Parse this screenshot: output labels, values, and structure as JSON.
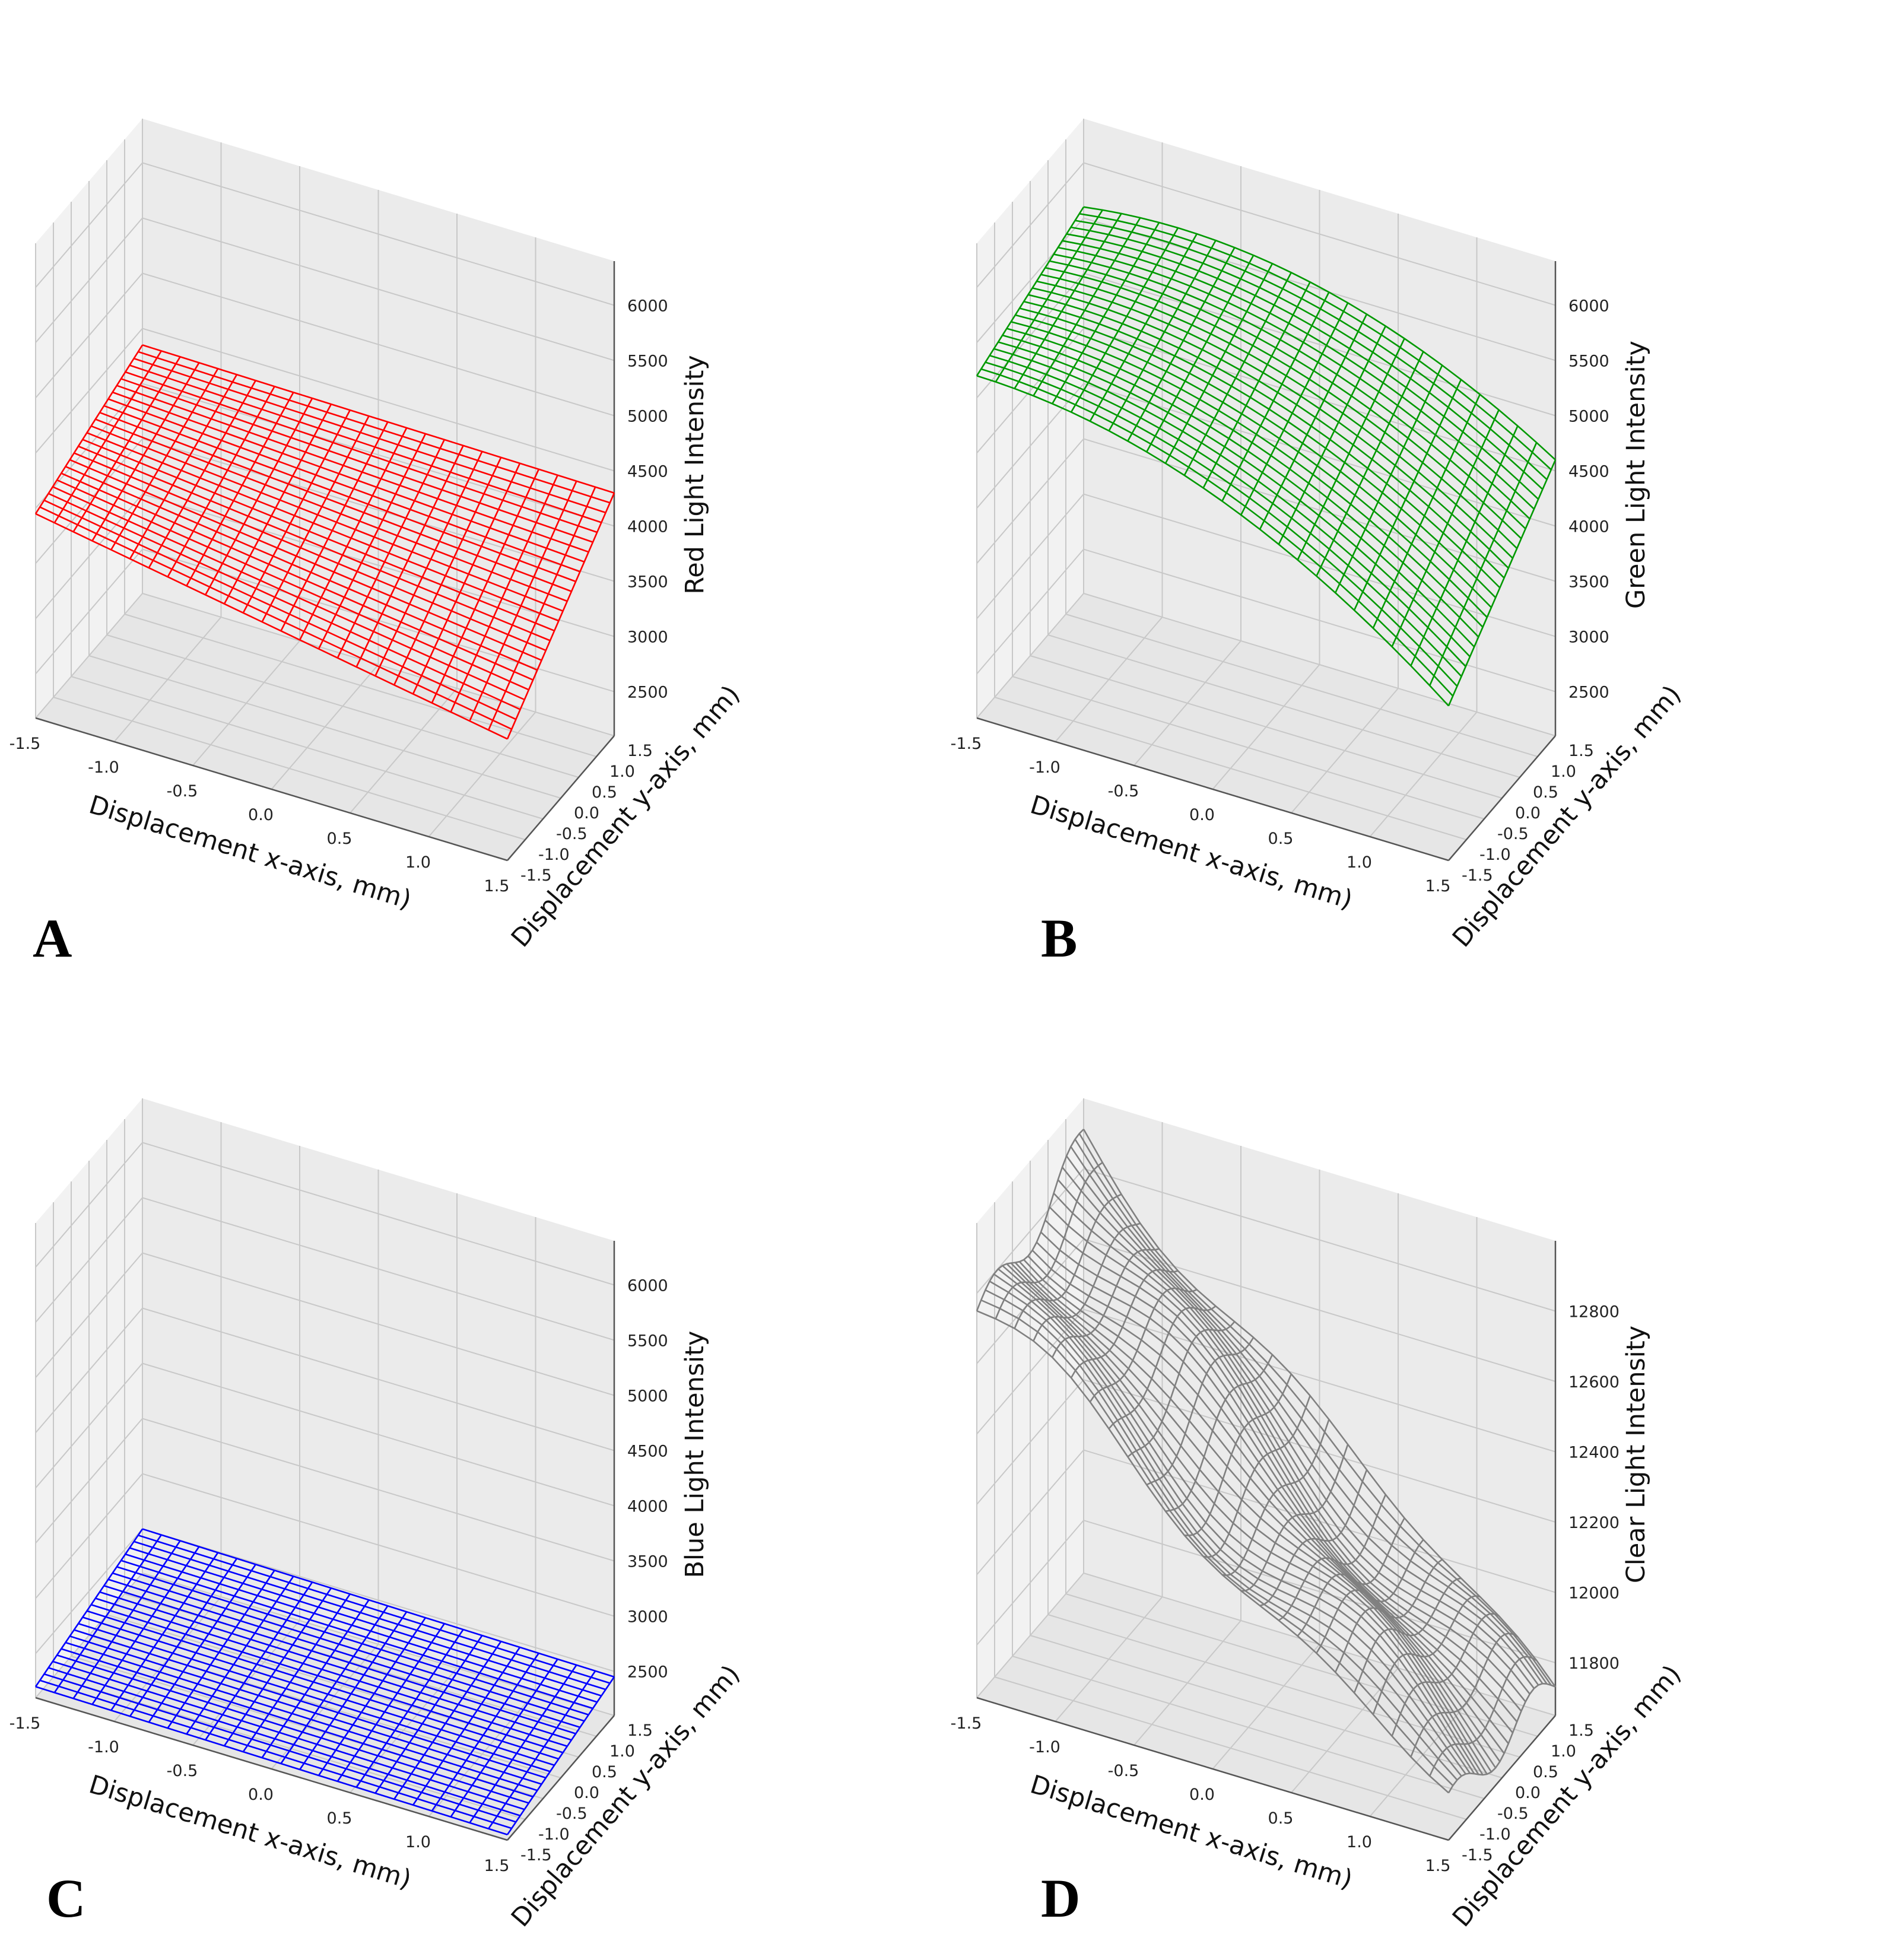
{
  "figure": {
    "panels": [
      {
        "letter": "A",
        "zlabel": "Red Light Intensity"
      },
      {
        "letter": "B",
        "zlabel": "Green Light Intensity"
      },
      {
        "letter": "C",
        "zlabel": "Blue Light Intensity"
      },
      {
        "letter": "D",
        "zlabel": "Clear Light Intensity"
      }
    ]
  },
  "chart_data": [
    {
      "type": "surface",
      "panel": "A",
      "title": "",
      "xlabel": "Displacement x-axis, mm)",
      "ylabel": "Displacement y-axis, mm)",
      "zlabel": "Red Light Intensity",
      "x_ticks": [
        "-1.5",
        "-1.0",
        "-0.5",
        "0.0",
        "0.5",
        "1.0",
        "1.5"
      ],
      "y_ticks": [
        "-1.5",
        "-1.0",
        "-0.5",
        "0.0",
        "0.5",
        "1.0",
        "1.5"
      ],
      "z_ticks": [
        "2500",
        "3000",
        "3500",
        "4000",
        "4500",
        "5000",
        "5500",
        "6000"
      ],
      "xlim": [
        -1.5,
        1.5
      ],
      "ylim": [
        -1.5,
        1.5
      ],
      "zlim": [
        2100,
        6400
      ],
      "color": "#ff0000",
      "grid": true,
      "surface_corners": {
        "x_min_y_min": 3950,
        "x_max_y_min": 3200,
        "x_min_y_max": 4350,
        "x_max_y_max": 4300
      }
    },
    {
      "type": "surface",
      "panel": "B",
      "title": "",
      "xlabel": "Displacement x-axis, mm)",
      "ylabel": "Displacement y-axis, mm)",
      "zlabel": "Green Light Intensity",
      "x_ticks": [
        "-1.5",
        "-1.0",
        "-0.5",
        "0.0",
        "0.5",
        "1.0",
        "1.5"
      ],
      "y_ticks": [
        "-1.5",
        "-1.0",
        "-0.5",
        "0.0",
        "0.5",
        "1.0",
        "1.5"
      ],
      "z_ticks": [
        "2500",
        "3000",
        "3500",
        "4000",
        "4500",
        "5000",
        "5500",
        "6000"
      ],
      "xlim": [
        -1.5,
        1.5
      ],
      "ylim": [
        -1.5,
        1.5
      ],
      "zlim": [
        2100,
        6400
      ],
      "color": "#009900",
      "grid": true,
      "surface_corners": {
        "x_min_y_min": 5200,
        "x_max_y_min": 3500,
        "x_min_y_max": 5600,
        "x_max_y_max": 4600
      },
      "curvature": 600
    },
    {
      "type": "surface",
      "panel": "C",
      "title": "",
      "xlabel": "Displacement x-axis, mm)",
      "ylabel": "Displacement y-axis, mm)",
      "zlabel": "Blue Light Intensity",
      "x_ticks": [
        "-1.5",
        "-1.0",
        "-0.5",
        "0.0",
        "0.5",
        "1.0",
        "1.5"
      ],
      "y_ticks": [
        "-1.5",
        "-1.0",
        "-0.5",
        "0.0",
        "0.5",
        "1.0",
        "1.5"
      ],
      "z_ticks": [
        "2500",
        "3000",
        "3500",
        "4000",
        "4500",
        "5000",
        "5500",
        "6000"
      ],
      "xlim": [
        -1.5,
        1.5
      ],
      "ylim": [
        -1.5,
        1.5
      ],
      "zlim": [
        2100,
        6400
      ],
      "color": "#0000ff",
      "grid": true,
      "surface_corners": {
        "x_min_y_min": 2200,
        "x_max_y_min": 2150,
        "x_min_y_max": 2500,
        "x_max_y_max": 2450
      }
    },
    {
      "type": "surface",
      "panel": "D",
      "title": "",
      "xlabel": "Displacement x-axis, mm)",
      "ylabel": "Displacement y-axis, mm)",
      "zlabel": "Clear Light Intensity",
      "x_ticks": [
        "-1.5",
        "-1.0",
        "-0.5",
        "0.0",
        "0.5",
        "1.0",
        "1.5"
      ],
      "y_ticks": [
        "-1.5",
        "-1.0",
        "-0.5",
        "0.0",
        "0.5",
        "1.0",
        "1.5"
      ],
      "z_ticks": [
        "11800",
        "12000",
        "12200",
        "12400",
        "12600",
        "12800"
      ],
      "xlim": [
        -1.5,
        1.5
      ],
      "ylim": [
        -1.5,
        1.5
      ],
      "zlim": [
        11650,
        13000
      ],
      "color": "#808080",
      "grid": true,
      "surface_corners": {
        "x_min_y_min": 12750,
        "x_max_y_min": 11800,
        "x_min_y_max": 12900,
        "x_max_y_max": 11700
      },
      "ripple": 90
    }
  ]
}
